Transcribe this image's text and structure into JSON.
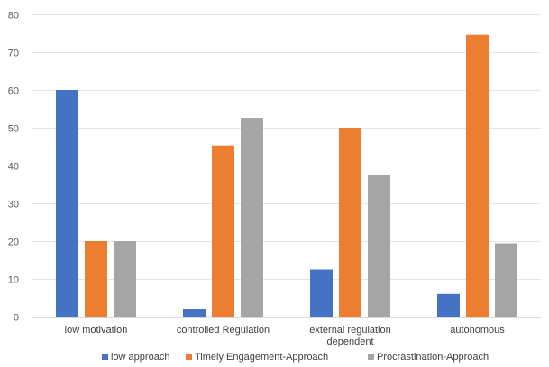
{
  "chart_data": {
    "type": "bar",
    "categories": [
      [
        "low motivation"
      ],
      [
        "controlled Regulation"
      ],
      [
        "external regulation",
        "dependent"
      ],
      [
        "autonomous"
      ]
    ],
    "series": [
      {
        "name": "low approach",
        "color": "#4472C4",
        "values": [
          60,
          2,
          12.5,
          6
        ]
      },
      {
        "name": "Timely Engagement-Approach",
        "color": "#ED7D31",
        "values": [
          20,
          45.3,
          50,
          74.6
        ]
      },
      {
        "name": "Procrastination-Approach",
        "color": "#A5A5A5",
        "values": [
          20,
          52.6,
          37.5,
          19.4
        ]
      }
    ],
    "yticks": [
      0,
      10,
      20,
      30,
      40,
      50,
      60,
      70,
      80
    ],
    "ylim": [
      0,
      80
    ],
    "grid": "horizontal",
    "legend": "bottom"
  }
}
